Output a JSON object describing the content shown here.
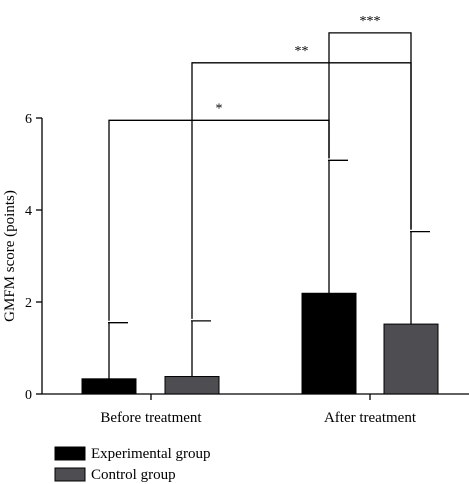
{
  "chart_data": {
    "type": "bar",
    "ylabel": "GMFM score (points)",
    "ylim": [
      0,
      6
    ],
    "yticks": [
      0,
      2,
      4,
      6
    ],
    "categories": [
      "Before treatment",
      "After treatment"
    ],
    "series": [
      {
        "name": "Experimental group",
        "values": [
          0.33,
          2.19
        ],
        "errors": [
          1.22,
          2.89
        ],
        "color": "#000000"
      },
      {
        "name": "Control group",
        "values": [
          0.38,
          1.52
        ],
        "errors": [
          1.21,
          2.01
        ],
        "color": "#4d4d52"
      }
    ],
    "significance": [
      {
        "label": "*",
        "from": [
          0,
          0
        ],
        "to": [
          1,
          0
        ],
        "y": 5.95
      },
      {
        "label": "**",
        "from": [
          0,
          1
        ],
        "to": [
          1,
          1
        ],
        "y": 7.2
      },
      {
        "label": "***",
        "from": [
          1,
          0
        ],
        "to": [
          1,
          1
        ],
        "y": 7.85
      }
    ],
    "legend_position": "bottom-left",
    "grid": false
  }
}
